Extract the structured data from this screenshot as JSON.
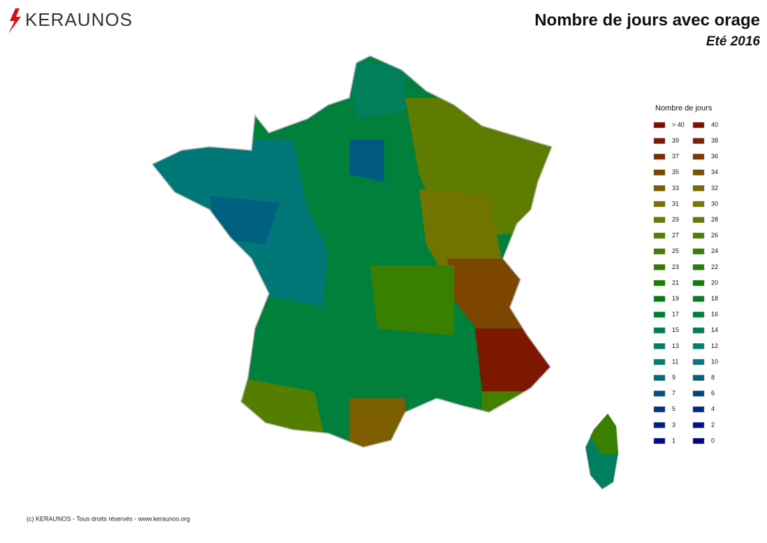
{
  "header": {
    "logo": "KERAUNOS",
    "title": "Nombre de jours avec orage",
    "subtitle": "Eté 2016"
  },
  "legend": {
    "title": "Nombre de jours",
    "items": [
      {
        "label": "> 40",
        "color": "#7d0c00"
      },
      {
        "label": "40",
        "color": "#7d1000"
      },
      {
        "label": "39",
        "color": "#7d1800"
      },
      {
        "label": "38",
        "color": "#7d2200"
      },
      {
        "label": "37",
        "color": "#7d2e00"
      },
      {
        "label": "36",
        "color": "#7d3a00"
      },
      {
        "label": "35",
        "color": "#7d4600"
      },
      {
        "label": "34",
        "color": "#7d5200"
      },
      {
        "label": "33",
        "color": "#7d5e00"
      },
      {
        "label": "32",
        "color": "#7d6a00"
      },
      {
        "label": "31",
        "color": "#7a7200"
      },
      {
        "label": "30",
        "color": "#757800"
      },
      {
        "label": "29",
        "color": "#6c7a00"
      },
      {
        "label": "28",
        "color": "#627c00"
      },
      {
        "label": "27",
        "color": "#587e00"
      },
      {
        "label": "26",
        "color": "#4e8000"
      },
      {
        "label": "25",
        "color": "#448000"
      },
      {
        "label": "24",
        "color": "#3a8000"
      },
      {
        "label": "23",
        "color": "#2e8000"
      },
      {
        "label": "22",
        "color": "#228000"
      },
      {
        "label": "21",
        "color": "#168000"
      },
      {
        "label": "20",
        "color": "#0a8000"
      },
      {
        "label": "19",
        "color": "#008010"
      },
      {
        "label": "18",
        "color": "#00801e"
      },
      {
        "label": "17",
        "color": "#00802c"
      },
      {
        "label": "16",
        "color": "#00803a"
      },
      {
        "label": "15",
        "color": "#008048"
      },
      {
        "label": "14",
        "color": "#008056"
      },
      {
        "label": "13",
        "color": "#008064"
      },
      {
        "label": "12",
        "color": "#008070"
      },
      {
        "label": "11",
        "color": "#007c78"
      },
      {
        "label": "10",
        "color": "#007880"
      },
      {
        "label": "9",
        "color": "#006c80"
      },
      {
        "label": "8",
        "color": "#006080"
      },
      {
        "label": "7",
        "color": "#005280"
      },
      {
        "label": "6",
        "color": "#004480"
      },
      {
        "label": "5",
        "color": "#003684"
      },
      {
        "label": "4",
        "color": "#002a86"
      },
      {
        "label": "3",
        "color": "#001e88"
      },
      {
        "label": "2",
        "color": "#00128a"
      },
      {
        "label": "1",
        "color": "#00088a"
      },
      {
        "label": "0",
        "color": "#00008a"
      }
    ]
  },
  "footer": "(c) KERAUNOS - Tous droits réservés - www.keraunos.org"
}
